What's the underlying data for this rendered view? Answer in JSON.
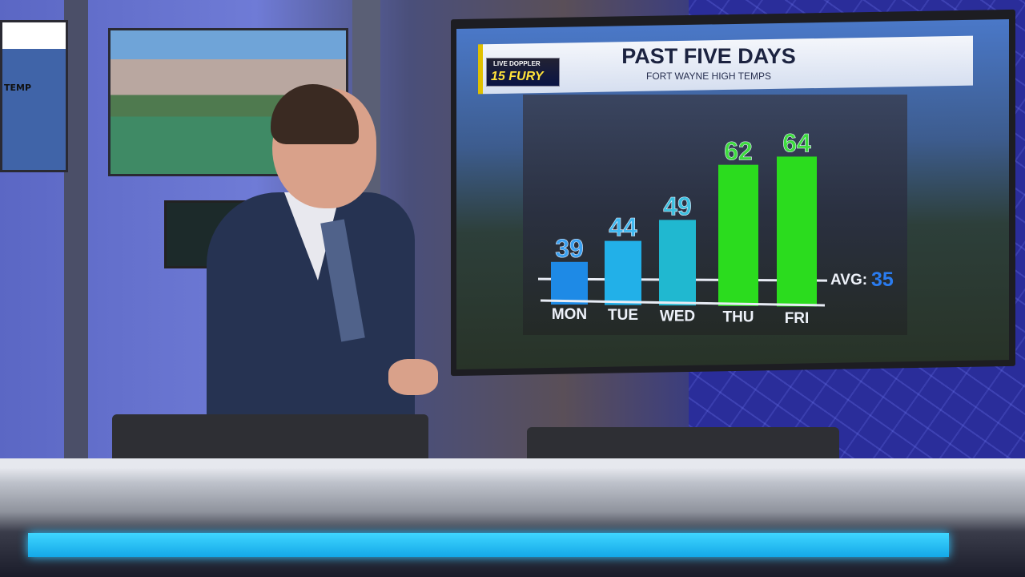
{
  "graphic": {
    "logo_line1": "LIVE DOPPLER",
    "logo_line2": "15 FURY",
    "title": "PAST FIVE DAYS",
    "subtitle": "FORT WAYNE HIGH TEMPS"
  },
  "background_monitor": {
    "left_label": "TEMP"
  },
  "chart_data": {
    "type": "bar",
    "title": "PAST FIVE DAYS",
    "subtitle": "FORT WAYNE HIGH TEMPS",
    "categories": [
      "MON",
      "TUE",
      "WED",
      "THU",
      "FRI"
    ],
    "values": [
      39,
      44,
      49,
      62,
      64
    ],
    "bar_colors": [
      "#1e8ae6",
      "#22b0e8",
      "#20b8d0",
      "#2bdc1e",
      "#2bdc1e"
    ],
    "label_colors": [
      "#3aa0f0",
      "#40b8f0",
      "#3cc0e0",
      "#3edc3e",
      "#3edc3e"
    ],
    "average": {
      "label": "AVG:",
      "value": 35,
      "color": "#2a7cf0"
    },
    "ylim": [
      29,
      66
    ],
    "grid": false,
    "legend": "none"
  }
}
